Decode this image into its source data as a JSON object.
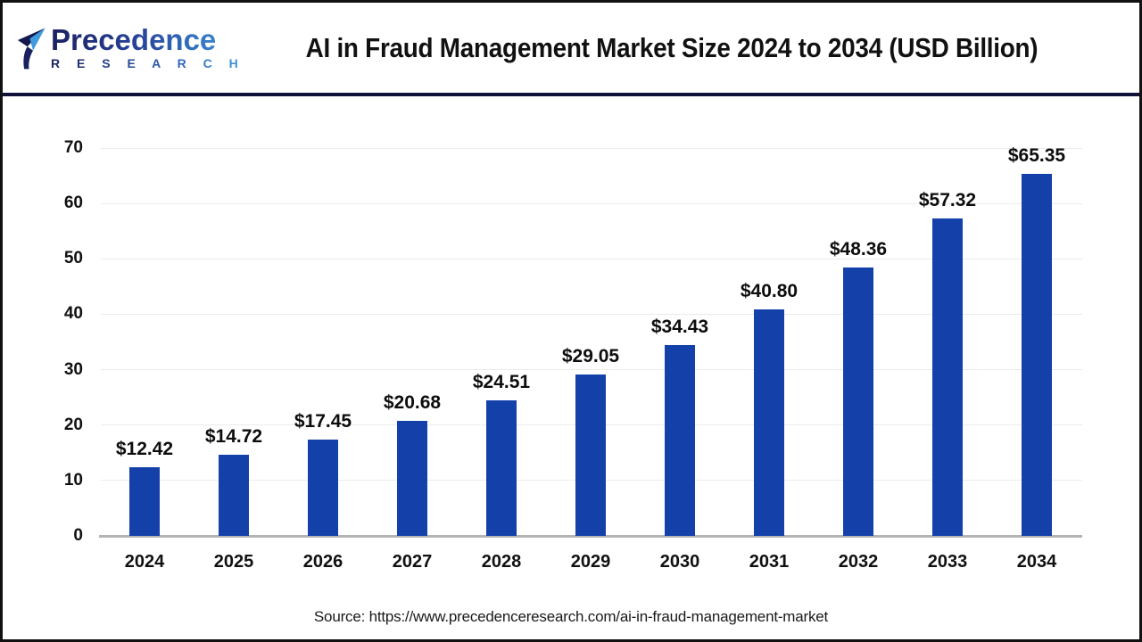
{
  "header": {
    "logo": {
      "word": "Precedence",
      "subword": "R E S E A R C H",
      "icon": "paper-plane-logo-icon",
      "color_dark": "#1b2160",
      "color_light": "#3f9ade"
    },
    "title": "AI in Fraud Management Market Size 2024 to 2034 (USD Billion)"
  },
  "chart_data": {
    "type": "bar",
    "title": "AI in Fraud Management Market Size 2024 to 2034 (USD Billion)",
    "categories": [
      "2024",
      "2025",
      "2026",
      "2027",
      "2028",
      "2029",
      "2030",
      "2031",
      "2032",
      "2033",
      "2034"
    ],
    "values": [
      12.42,
      14.72,
      17.45,
      20.68,
      24.51,
      29.05,
      34.43,
      40.8,
      48.36,
      57.32,
      65.35
    ],
    "value_labels": [
      "$12.42",
      "$14.72",
      "$17.45",
      "$20.68",
      "$24.51",
      "$29.05",
      "$34.43",
      "$40.80",
      "$48.36",
      "$57.32",
      "$65.35"
    ],
    "unit": "USD Billion",
    "xlabel": "",
    "ylabel": "",
    "ylim": [
      0,
      70
    ],
    "yticks": [
      0,
      10,
      20,
      30,
      40,
      50,
      60,
      70
    ],
    "grid": true,
    "legend": "none",
    "bar_color": "#1440aa",
    "gridline_color": "#ebebeb",
    "baseline_color": "#b4b4b4"
  },
  "footer": {
    "source": "Source: https://www.precedenceresearch.com/ai-in-fraud-management-market"
  }
}
